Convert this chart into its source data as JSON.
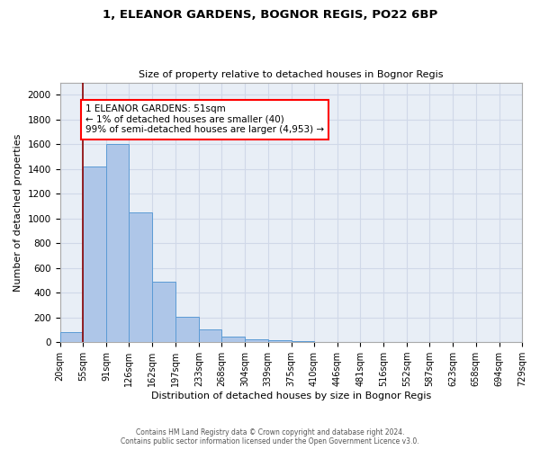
{
  "title": "1, ELEANOR GARDENS, BOGNOR REGIS, PO22 6BP",
  "subtitle": "Size of property relative to detached houses in Bognor Regis",
  "xlabel": "Distribution of detached houses by size in Bognor Regis",
  "ylabel": "Number of detached properties",
  "footnote1": "Contains HM Land Registry data © Crown copyright and database right 2024.",
  "footnote2": "Contains public sector information licensed under the Open Government Licence v3.0.",
  "bins": [
    20,
    55,
    91,
    126,
    162,
    197,
    233,
    268,
    304,
    339,
    375,
    410,
    446,
    481,
    516,
    552,
    587,
    623,
    658,
    694,
    729
  ],
  "bin_labels": [
    "20sqm",
    "55sqm",
    "91sqm",
    "126sqm",
    "162sqm",
    "197sqm",
    "233sqm",
    "268sqm",
    "304sqm",
    "339sqm",
    "375sqm",
    "410sqm",
    "446sqm",
    "481sqm",
    "516sqm",
    "552sqm",
    "587sqm",
    "623sqm",
    "658sqm",
    "694sqm",
    "729sqm"
  ],
  "counts": [
    80,
    1420,
    1600,
    1050,
    490,
    205,
    105,
    45,
    25,
    15,
    10,
    0,
    0,
    0,
    0,
    0,
    0,
    0,
    0,
    0
  ],
  "bar_color": "#aec6e8",
  "bar_edge_color": "#5b9bd5",
  "ylim": [
    0,
    2100
  ],
  "yticks": [
    0,
    200,
    400,
    600,
    800,
    1000,
    1200,
    1400,
    1600,
    1800,
    2000
  ],
  "red_line_x": 55,
  "annotation_text": "1 ELEANOR GARDENS: 51sqm\n← 1% of detached houses are smaller (40)\n99% of semi-detached houses are larger (4,953) →",
  "grid_color": "#d0d8e8",
  "background_color": "#e8eef6"
}
